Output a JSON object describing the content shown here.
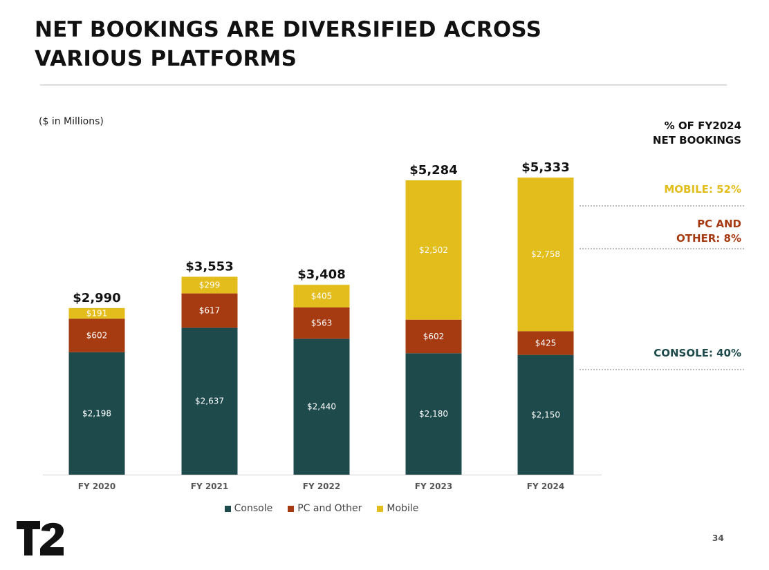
{
  "title": "NET BOOKINGS ARE DIVERSIFIED ACROSS VARIOUS PLATFORMS",
  "unit_note": "($ in Millions)",
  "percent_panel": {
    "heading_line1": "% OF FY2024",
    "heading_line2": "NET BOOKINGS",
    "mobile_label": "MOBILE: 52%",
    "pc_label_line1": "PC AND",
    "pc_label_line2": "OTHER: 8%",
    "console_label": "CONSOLE: 40%"
  },
  "page_number": "34",
  "colors": {
    "console": "#1e4a4c",
    "pc_other": "#a63a10",
    "mobile": "#e3bd1c",
    "ink": "#111111"
  },
  "chart_data": {
    "type": "bar",
    "stacked": true,
    "categories": [
      "FY 2020",
      "FY 2021",
      "FY 2022",
      "FY 2023",
      "FY 2024"
    ],
    "series": [
      {
        "name": "Console",
        "values": [
          2198,
          2637,
          2440,
          2180,
          2150
        ],
        "labels": [
          "$2,198",
          "$2,637",
          "$2,440",
          "$2,180",
          "$2,150"
        ]
      },
      {
        "name": "PC and Other",
        "values": [
          602,
          617,
          563,
          602,
          425
        ],
        "labels": [
          "$602",
          "$617",
          "$563",
          "$602",
          "$425"
        ]
      },
      {
        "name": "Mobile",
        "values": [
          191,
          299,
          405,
          2502,
          2758
        ],
        "labels": [
          "$191",
          "$299",
          "$405",
          "$2,502",
          "$2,758"
        ]
      }
    ],
    "totals": [
      2990,
      3553,
      3408,
      5284,
      5333
    ],
    "total_labels": [
      "$2,990",
      "$3,553",
      "$3,408",
      "$5,284",
      "$5,333"
    ],
    "ylim": [
      0,
      5333
    ],
    "grid": false,
    "legend_position": "bottom"
  }
}
